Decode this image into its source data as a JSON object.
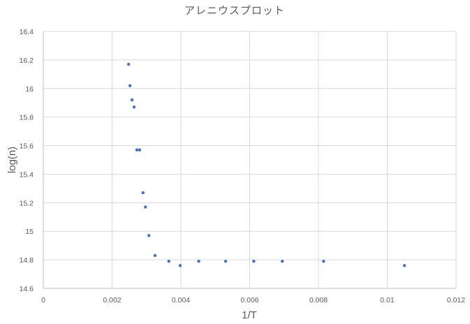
{
  "chart_data": {
    "type": "scatter",
    "title": "アレニウスプロット",
    "xlabel": "1/T",
    "ylabel": "log(n)",
    "xlim": [
      0,
      0.012
    ],
    "ylim": [
      14.6,
      16.4
    ],
    "x_ticks": [
      "0",
      "0.002",
      "0.004",
      "0.006",
      "0.008",
      "0.01",
      "0.012"
    ],
    "y_ticks": [
      "14.6",
      "14.8",
      "15",
      "15.2",
      "15.4",
      "15.6",
      "15.8",
      "16",
      "16.2",
      "16.4"
    ],
    "grid": true,
    "legend": "none",
    "marker_color": "#4472c4",
    "series": [
      {
        "x": [
          0.00248,
          0.00252,
          0.00258,
          0.00264,
          0.00272,
          0.0028,
          0.0029,
          0.00297,
          0.00307,
          0.00325,
          0.00365,
          0.00398,
          0.00452,
          0.0053,
          0.00612,
          0.00695,
          0.00815,
          0.0105
        ],
        "y": [
          16.17,
          16.02,
          15.92,
          15.87,
          15.57,
          15.57,
          15.27,
          15.17,
          14.97,
          14.83,
          14.79,
          14.76,
          14.79,
          14.79,
          14.79,
          14.79,
          14.79,
          14.76
        ]
      }
    ]
  }
}
